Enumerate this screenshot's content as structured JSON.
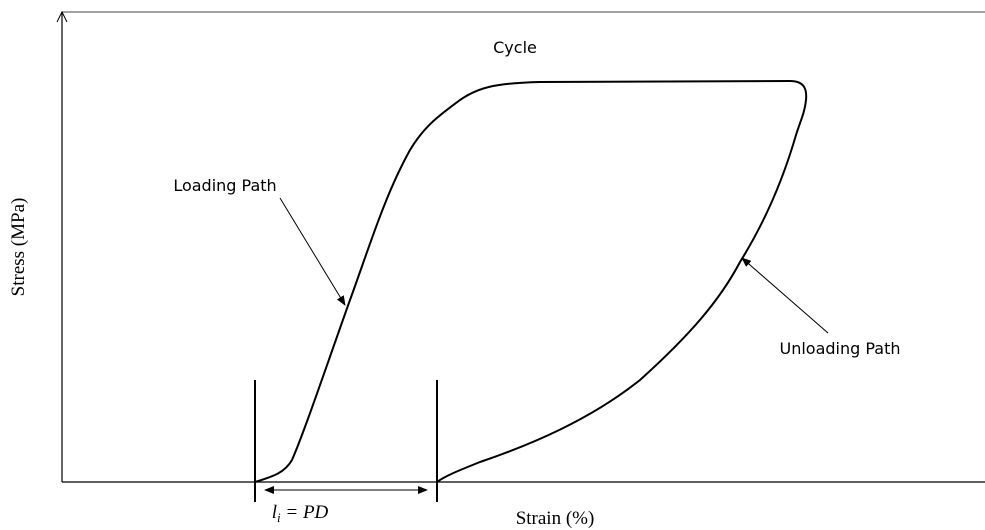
{
  "title": "Cycle",
  "annotations": {
    "loading": "Loading Path",
    "unloading": "Unloading Path"
  },
  "axes": {
    "y_label": "Stress (MPa)",
    "x_label": "Strain (%)"
  },
  "dimension": {
    "symbol": "l",
    "subscript": "i",
    "rest": " = PD"
  }
}
